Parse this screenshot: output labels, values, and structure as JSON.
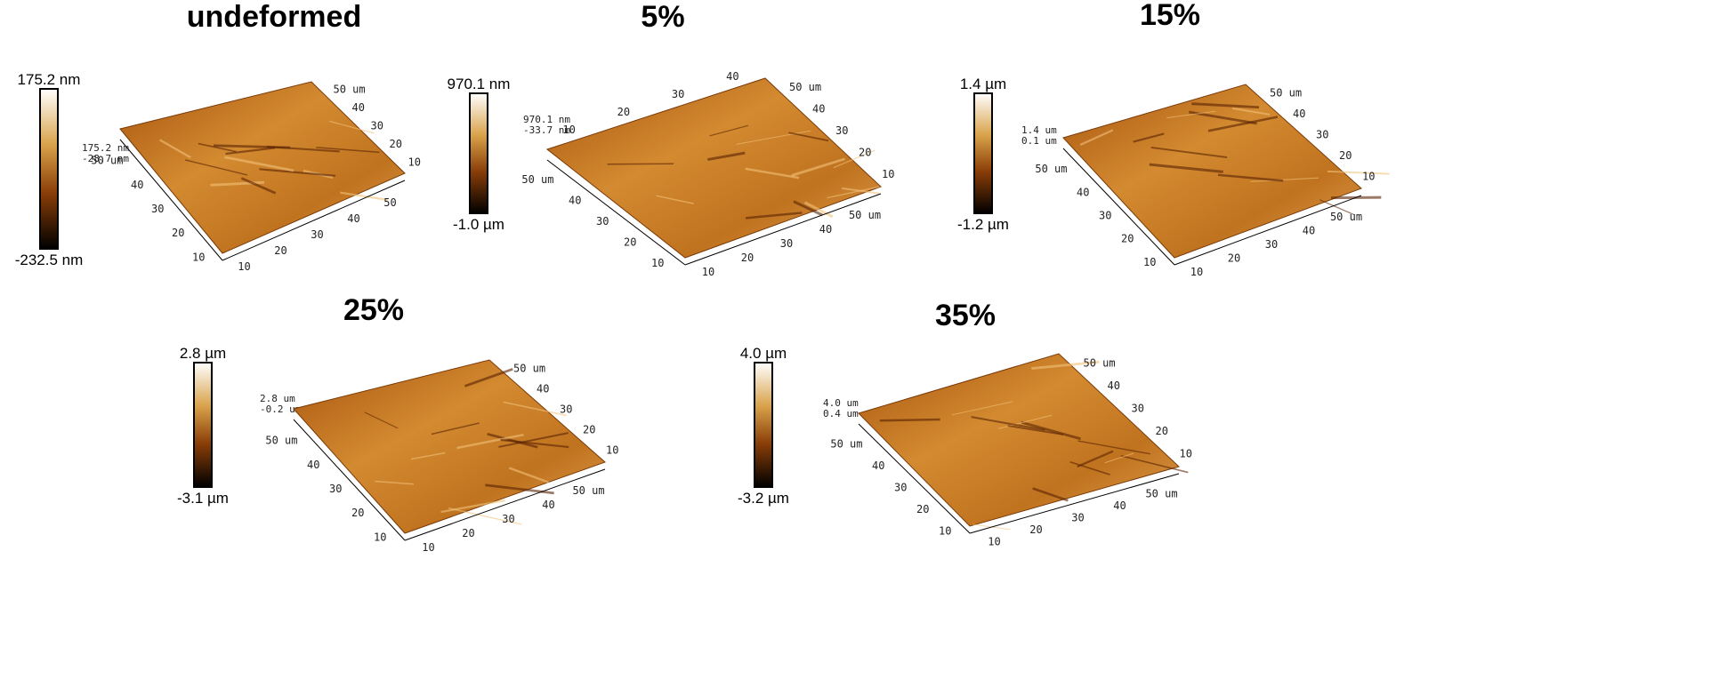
{
  "panels": [
    {
      "title": "undeformed",
      "colorbar": {
        "max": "175.2 nm",
        "min": "-232.5 nm"
      },
      "z_labels": [
        "175.2 nm",
        "-28.7 nm"
      ],
      "left_ticks": [
        "50 um",
        "40",
        "30",
        "20",
        "10"
      ],
      "front_ticks": [
        "10",
        "20",
        "30",
        "40",
        "50"
      ],
      "back_ticks": [
        "50 um",
        "40",
        "30",
        "20",
        "10"
      ]
    },
    {
      "title": "5%",
      "colorbar": {
        "max": "970.1 nm",
        "min": "-1.0 µm"
      },
      "z_labels": [
        "970.1 nm",
        "-33.7 nm"
      ],
      "left_ticks": [
        "50 um",
        "40",
        "30",
        "20",
        "10"
      ],
      "front_ticks": [
        "10",
        "20",
        "30",
        "40",
        "50 um"
      ],
      "back_ticks": [
        "50 um",
        "40",
        "30",
        "20",
        "10"
      ],
      "top_ticks": [
        "10",
        "20",
        "30",
        "40"
      ]
    },
    {
      "title": "15%",
      "colorbar": {
        "max": "1.4 µm",
        "min": "-1.2 µm"
      },
      "z_labels": [
        "1.4 um",
        "0.1 um"
      ],
      "left_ticks": [
        "50 um",
        "40",
        "30",
        "20",
        "10"
      ],
      "front_ticks": [
        "10",
        "20",
        "30",
        "40",
        "50 um"
      ],
      "back_ticks": [
        "50 um",
        "40",
        "30",
        "20",
        "10"
      ]
    },
    {
      "title": "25%",
      "colorbar": {
        "max": "2.8 µm",
        "min": "-3.1 µm"
      },
      "z_labels": [
        "2.8 um",
        "-0.2 um"
      ],
      "left_ticks": [
        "50 um",
        "40",
        "30",
        "20",
        "10"
      ],
      "front_ticks": [
        "10",
        "20",
        "30",
        "40",
        "50 um"
      ],
      "back_ticks": [
        "50 um",
        "40",
        "30",
        "20",
        "10"
      ]
    },
    {
      "title": "35%",
      "colorbar": {
        "max": "4.0 µm",
        "min": "-3.2 µm"
      },
      "z_labels": [
        "4.0 um",
        "0.4 um"
      ],
      "left_ticks": [
        "50 um",
        "40",
        "30",
        "20",
        "10"
      ],
      "front_ticks": [
        "10",
        "20",
        "30",
        "40",
        "50 um"
      ],
      "back_ticks": [
        "50 um",
        "40",
        "30",
        "20",
        "10"
      ]
    }
  ]
}
